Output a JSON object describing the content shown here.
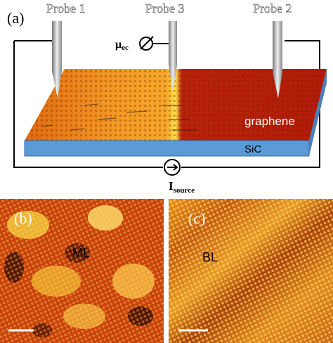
{
  "panel_a": {
    "label": "(a)",
    "probes": [
      "Probe 1",
      "Probe 3",
      "Probe 2"
    ],
    "voltmeter": {
      "symbol": "μ",
      "subscript": "ec"
    },
    "film": "graphene",
    "substrate": "SiC",
    "current": {
      "symbol": "I",
      "subscript": "source"
    }
  },
  "panel_b": {
    "label": "(b)",
    "region": "ML"
  },
  "panel_c": {
    "label": "(c)",
    "region": "BL"
  }
}
